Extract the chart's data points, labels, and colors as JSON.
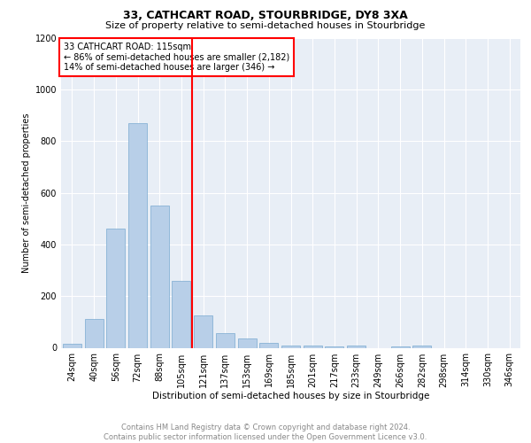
{
  "title1": "33, CATHCART ROAD, STOURBRIDGE, DY8 3XA",
  "title2": "Size of property relative to semi-detached houses in Stourbridge",
  "xlabel": "Distribution of semi-detached houses by size in Stourbridge",
  "ylabel": "Number of semi-detached properties",
  "annotation_line1": "33 CATHCART ROAD: 115sqm",
  "annotation_line2": "← 86% of semi-detached houses are smaller (2,182)",
  "annotation_line3": "14% of semi-detached houses are larger (346) →",
  "footer1": "Contains HM Land Registry data © Crown copyright and database right 2024.",
  "footer2": "Contains public sector information licensed under the Open Government Licence v3.0.",
  "categories": [
    "24sqm",
    "40sqm",
    "56sqm",
    "72sqm",
    "88sqm",
    "105sqm",
    "121sqm",
    "137sqm",
    "153sqm",
    "169sqm",
    "185sqm",
    "201sqm",
    "217sqm",
    "233sqm",
    "249sqm",
    "266sqm",
    "282sqm",
    "298sqm",
    "314sqm",
    "330sqm",
    "346sqm"
  ],
  "values": [
    15,
    110,
    460,
    870,
    550,
    260,
    125,
    55,
    35,
    20,
    10,
    10,
    5,
    10,
    0,
    5,
    10,
    0,
    0,
    0,
    0
  ],
  "bar_color": "#b8cfe8",
  "bar_edge_color": "#7aaad0",
  "vline_x": 5.5,
  "vline_color": "red",
  "ylim": [
    0,
    1200
  ],
  "yticks": [
    0,
    200,
    400,
    600,
    800,
    1000,
    1200
  ],
  "background_color": "#e8eef6",
  "grid_color": "#ffffff",
  "title1_fontsize": 9,
  "title2_fontsize": 8,
  "ylabel_fontsize": 7,
  "xlabel_fontsize": 7.5,
  "tick_fontsize": 7,
  "annotation_fontsize": 7,
  "footer_fontsize": 6
}
